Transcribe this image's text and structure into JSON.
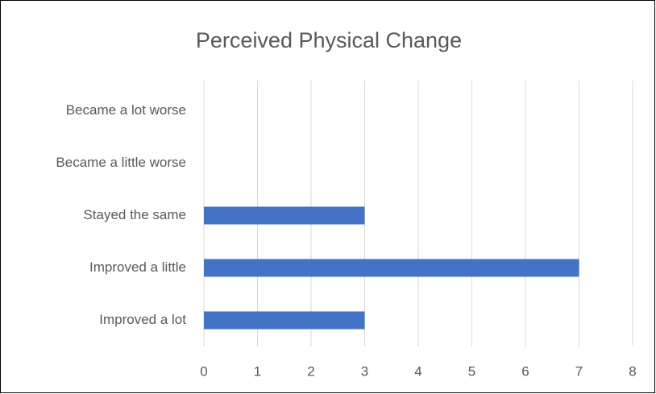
{
  "chart_data": {
    "type": "barh",
    "title": "Perceived Physical Change",
    "categories": [
      "Became a lot worse",
      "Became a little worse",
      "Stayed the same",
      "Improved a little",
      "Improved a lot"
    ],
    "values": [
      0,
      0,
      3,
      7,
      3
    ],
    "color": "#4472c4",
    "xlim": [
      0,
      8
    ],
    "xticks": [
      0,
      1,
      2,
      3,
      4,
      5,
      6,
      7,
      8
    ],
    "grid": true
  }
}
